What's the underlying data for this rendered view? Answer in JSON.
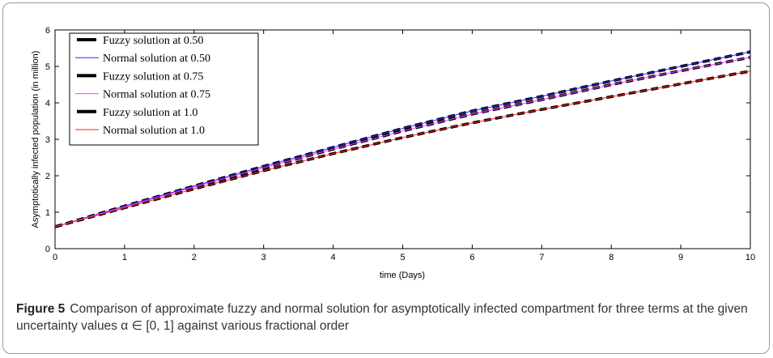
{
  "chart_data": {
    "type": "line",
    "xlabel": "time  (Days)",
    "ylabel": "Asymptotically infected population (in million)",
    "xlim": [
      0,
      10
    ],
    "ylim": [
      0,
      6
    ],
    "xticks": [
      0,
      1,
      2,
      3,
      4,
      5,
      6,
      7,
      8,
      9,
      10
    ],
    "yticks": [
      0,
      1,
      2,
      3,
      4,
      5,
      6
    ],
    "grid": false,
    "legend_position": "top-left",
    "x": [
      0,
      1,
      2,
      3,
      4,
      5,
      6,
      7,
      8,
      9,
      10
    ],
    "series": [
      {
        "name": "Fuzzy solution at 0.50",
        "style": "dashed",
        "color": "#000000",
        "values": [
          0.6,
          1.17,
          1.72,
          2.26,
          2.78,
          3.3,
          3.78,
          4.18,
          4.6,
          5.0,
          5.4
        ]
      },
      {
        "name": "Normal solution at 0.50",
        "style": "solid",
        "color": "#2c2cff",
        "values": [
          0.6,
          1.17,
          1.72,
          2.26,
          2.78,
          3.3,
          3.78,
          4.18,
          4.6,
          5.0,
          5.4
        ]
      },
      {
        "name": "Fuzzy solution at 0.75",
        "style": "dashed",
        "color": "#000000",
        "values": [
          0.6,
          1.15,
          1.69,
          2.22,
          2.73,
          3.23,
          3.69,
          4.09,
          4.5,
          4.88,
          5.25
        ]
      },
      {
        "name": "Normal solution at 0.75",
        "style": "solid",
        "color": "#ff3cff",
        "values": [
          0.6,
          1.15,
          1.69,
          2.22,
          2.73,
          3.23,
          3.69,
          4.09,
          4.5,
          4.88,
          5.25
        ]
      },
      {
        "name": "Fuzzy solution at 1.0",
        "style": "dashed",
        "color": "#000000",
        "values": [
          0.6,
          1.12,
          1.64,
          2.14,
          2.61,
          3.05,
          3.45,
          3.82,
          4.17,
          4.52,
          4.87
        ]
      },
      {
        "name": "Normal solution at 1.0",
        "style": "solid",
        "color": "#ff2020",
        "values": [
          0.6,
          1.12,
          1.64,
          2.14,
          2.61,
          3.05,
          3.45,
          3.82,
          4.17,
          4.52,
          4.87
        ]
      }
    ]
  },
  "caption": {
    "label": "Figure 5",
    "text": "Comparison of approximate fuzzy and normal solution for asymptotically infected compartment for three terms at the given uncertainty values α ∈ [0, 1] against various fractional order"
  }
}
